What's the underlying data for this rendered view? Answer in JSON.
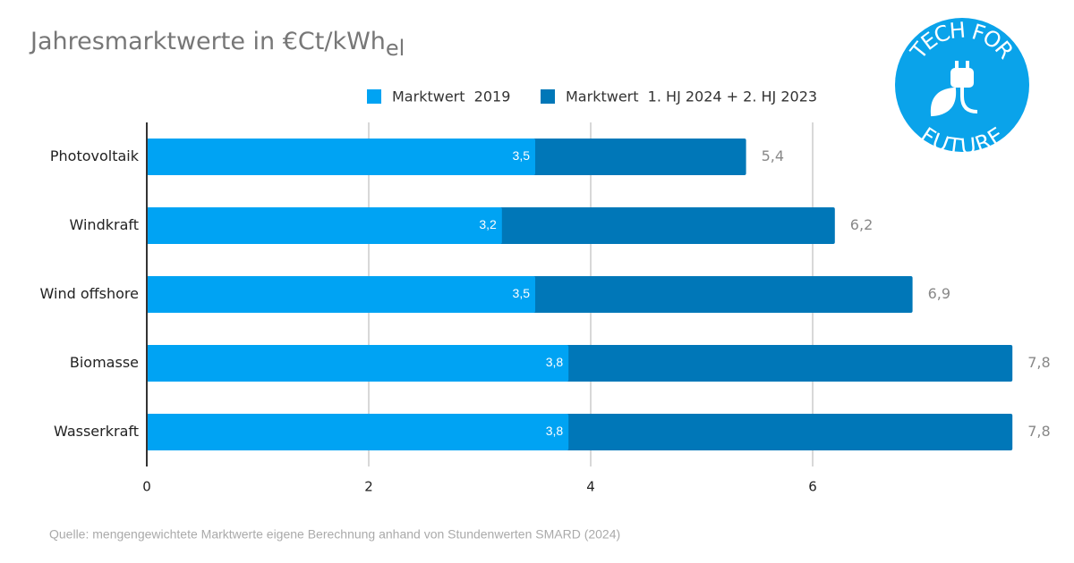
{
  "chart_data": {
    "type": "overlay-bar",
    "title": "Jahresmarktwerte in €Ct/kWh",
    "title_subscript": "el",
    "categories": [
      "Photovoltaik",
      "Windkraft",
      "Wind offshore",
      "Biomasse",
      "Wasserkraft"
    ],
    "series": [
      {
        "name": "Marktwert  2019",
        "color": "#00a3f3",
        "values": [
          3.5,
          3.2,
          3.5,
          3.8,
          3.8
        ],
        "value_labels": [
          "3,5",
          "3,2",
          "3,5",
          "3,8",
          "3,8"
        ]
      },
      {
        "name": "Marktwert  1. HJ 2024 + 2. HJ 2023",
        "color": "#0077b8",
        "values": [
          5.4,
          6.2,
          6.9,
          7.8,
          7.8
        ],
        "value_labels": [
          "5,4",
          "6,2",
          "6,9",
          "7,8",
          "7,8"
        ]
      }
    ],
    "xlim": [
      0,
      8
    ],
    "xticks": [
      0,
      2,
      4,
      6
    ],
    "grid": true,
    "legend": "top",
    "source": "Quelle: mengengewichtete Marktwerte eigene Berechnung anhand von Stundenwerten SMARD (2024)"
  },
  "logo": {
    "top": "TECH FOR",
    "bottom": "FUTURE"
  }
}
